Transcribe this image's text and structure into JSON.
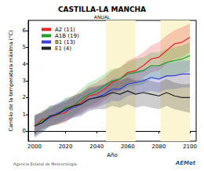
{
  "chart_data": {
    "type": "line",
    "title": "CASTILLA-LA MANCHA",
    "subtitle": "ANUAL",
    "x_label": "Año",
    "y_label": "Cambio de la temperatura máxima (°C)",
    "footer": "Agencia Estatal de Meteorología",
    "logo": "AEMet",
    "legend": "upper left",
    "grid": false,
    "xlim": [
      1996,
      2104
    ],
    "xticks": [
      2000,
      2020,
      2040,
      2060,
      2080,
      2100
    ],
    "ylim": [
      -0.6,
      6.6
    ],
    "yticks": [
      0,
      1,
      2,
      3,
      4,
      5,
      6
    ],
    "highlight_ranges": [
      [
        2046,
        2065
      ],
      [
        2081,
        2100
      ]
    ],
    "highlight_color": "#fbf5d2",
    "x": [
      2000,
      2005,
      2010,
      2015,
      2020,
      2025,
      2030,
      2035,
      2040,
      2045,
      2050,
      2055,
      2060,
      2065,
      2070,
      2075,
      2080,
      2085,
      2090,
      2095,
      2100
    ],
    "series": [
      {
        "name": "A2 (11)",
        "color": "#e8262a",
        "values": [
          0.3,
          0.7,
          0.8,
          1.0,
          1.1,
          1.5,
          1.7,
          2.1,
          2.2,
          2.5,
          2.9,
          3.1,
          3.5,
          3.6,
          3.9,
          4.3,
          4.4,
          4.8,
          5.2,
          5.3,
          5.6
        ],
        "lower": [
          -0.2,
          0.2,
          0.3,
          0.4,
          0.5,
          0.9,
          1.1,
          1.4,
          1.5,
          1.8,
          2.2,
          2.4,
          2.8,
          2.9,
          3.2,
          3.5,
          3.6,
          4.0,
          4.3,
          4.4,
          4.7
        ],
        "upper": [
          0.9,
          1.2,
          1.3,
          1.6,
          1.7,
          2.1,
          2.3,
          2.7,
          2.9,
          3.2,
          3.6,
          3.8,
          4.2,
          4.4,
          4.7,
          5.1,
          5.3,
          5.7,
          6.0,
          6.2,
          6.4
        ]
      },
      {
        "name": "A1B (19)",
        "color": "#1e9e2a",
        "values": [
          0.3,
          0.6,
          0.9,
          1.0,
          1.4,
          1.5,
          1.9,
          2.2,
          2.4,
          2.7,
          3.0,
          3.1,
          3.4,
          3.5,
          3.6,
          3.9,
          3.9,
          4.1,
          4.2,
          4.3,
          4.5
        ],
        "lower": [
          -0.3,
          0.1,
          0.3,
          0.4,
          0.8,
          0.9,
          1.3,
          1.5,
          1.7,
          2.0,
          2.3,
          2.4,
          2.6,
          2.7,
          2.8,
          3.1,
          3.1,
          3.2,
          3.3,
          3.4,
          3.6
        ],
        "upper": [
          0.9,
          1.2,
          1.5,
          1.6,
          2.0,
          2.1,
          2.5,
          2.9,
          3.1,
          3.4,
          3.7,
          3.8,
          4.1,
          4.3,
          4.4,
          4.7,
          4.7,
          4.9,
          5.0,
          5.1,
          5.3
        ]
      },
      {
        "name": "B1 (13)",
        "color": "#3b3fe0",
        "values": [
          0.3,
          0.5,
          0.8,
          1.1,
          1.2,
          1.4,
          1.6,
          1.9,
          2.0,
          2.2,
          2.5,
          2.5,
          2.8,
          2.9,
          3.0,
          3.2,
          3.1,
          3.3,
          3.3,
          3.4,
          3.4
        ],
        "lower": [
          -0.3,
          0.0,
          0.3,
          0.5,
          0.6,
          0.8,
          1.0,
          1.3,
          1.4,
          1.6,
          1.8,
          1.8,
          2.1,
          2.2,
          2.3,
          2.4,
          2.3,
          2.5,
          2.5,
          2.6,
          2.6
        ],
        "upper": [
          0.9,
          1.1,
          1.4,
          1.7,
          1.8,
          2.0,
          2.2,
          2.5,
          2.6,
          2.8,
          3.1,
          3.2,
          3.5,
          3.6,
          3.7,
          3.9,
          3.9,
          4.1,
          4.1,
          4.2,
          4.2
        ]
      },
      {
        "name": "E1 (4)",
        "color": "#222222",
        "values": [
          0.3,
          0.5,
          0.9,
          1.0,
          1.3,
          1.5,
          1.6,
          1.9,
          2.0,
          2.1,
          2.3,
          2.2,
          2.4,
          2.2,
          2.3,
          2.2,
          2.1,
          2.3,
          2.1,
          2.0,
          2.0
        ],
        "lower": [
          -0.4,
          -0.1,
          0.3,
          0.4,
          0.6,
          0.8,
          0.9,
          1.2,
          1.3,
          1.3,
          1.5,
          1.4,
          1.6,
          1.4,
          1.5,
          1.4,
          1.3,
          1.5,
          1.3,
          1.2,
          1.1
        ],
        "upper": [
          1.0,
          1.1,
          1.5,
          1.6,
          1.9,
          2.1,
          2.3,
          2.6,
          2.7,
          2.8,
          3.0,
          3.0,
          3.2,
          3.0,
          3.1,
          3.0,
          2.9,
          3.1,
          2.9,
          2.8,
          2.8
        ]
      }
    ]
  }
}
